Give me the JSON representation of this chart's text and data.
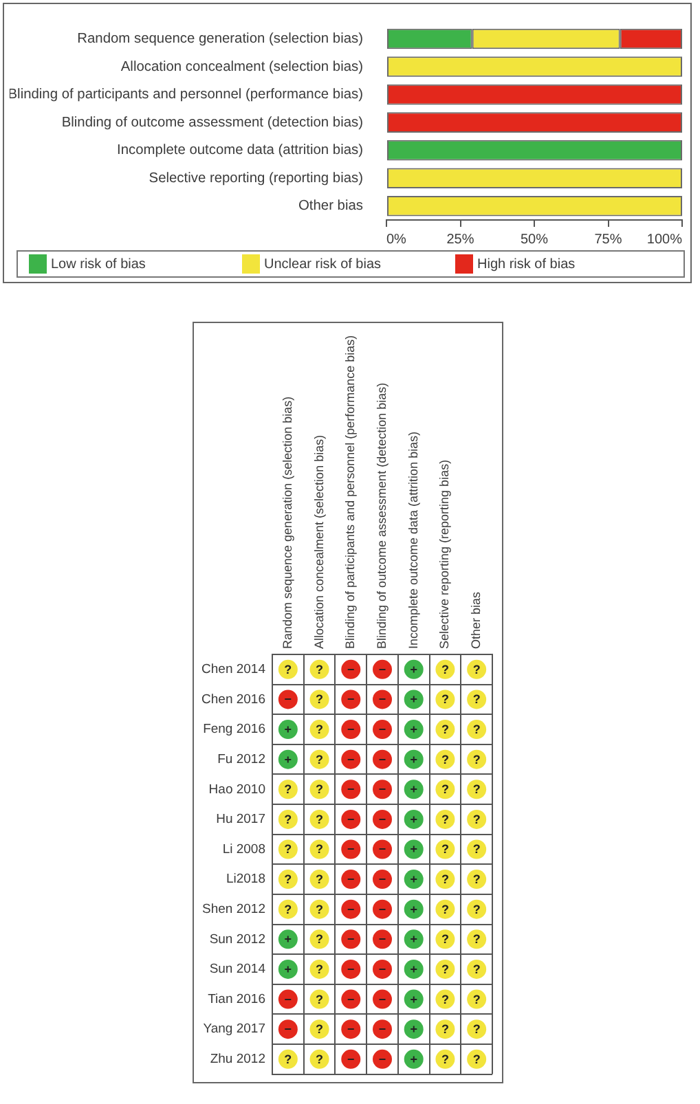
{
  "chart_data": [
    {
      "type": "bar",
      "orientation": "horizontal",
      "stacked": true,
      "categories": [
        "Random sequence generation (selection bias)",
        "Allocation concealment (selection bias)",
        "Blinding of participants and personnel (performance bias)",
        "Blinding of outcome assessment (detection bias)",
        "Incomplete outcome data (attrition bias)",
        "Selective reporting (reporting bias)",
        "Other bias"
      ],
      "series": [
        {
          "name": "Low risk of bias",
          "color": "#3db34a",
          "values": [
            29,
            0,
            0,
            0,
            100,
            0,
            0
          ]
        },
        {
          "name": "Unclear risk of bias",
          "color": "#f2e43c",
          "values": [
            50,
            100,
            0,
            0,
            0,
            100,
            100
          ]
        },
        {
          "name": "High risk of bias",
          "color": "#e3281c",
          "values": [
            21,
            0,
            100,
            100,
            0,
            0,
            0
          ]
        }
      ],
      "xlim": [
        0,
        100
      ],
      "xticks": [
        {
          "value": 0,
          "label": "0%"
        },
        {
          "value": 25,
          "label": "25%"
        },
        {
          "value": 50,
          "label": "50%"
        },
        {
          "value": 75,
          "label": "75%"
        },
        {
          "value": 100,
          "label": "100%"
        }
      ],
      "grid": false,
      "legend": "bottom"
    },
    {
      "type": "heatmap",
      "grid": true,
      "categories": [
        "Random sequence generation (selection bias)",
        "Allocation concealment (selection bias)",
        "Blinding of participants and personnel (performance bias)",
        "Blinding of outcome assessment (detection bias)",
        "Incomplete outcome data (attrition bias)",
        "Selective reporting (reporting bias)",
        "Other bias"
      ],
      "y_categories": [
        "Chen 2014",
        "Chen 2016",
        "Feng 2016",
        "Fu 2012",
        "Hao 2010",
        "Hu 2017",
        "Li 2008",
        "Li2018",
        "Shen 2012",
        "Sun 2012",
        "Sun 2014",
        "Tian 2016",
        "Yang 2017",
        "Zhu 2012"
      ],
      "cells": [
        [
          "?",
          "?",
          "−",
          "−",
          "+",
          "?",
          "?"
        ],
        [
          "−",
          "?",
          "−",
          "−",
          "+",
          "?",
          "?"
        ],
        [
          "+",
          "?",
          "−",
          "−",
          "+",
          "?",
          "?"
        ],
        [
          "+",
          "?",
          "−",
          "−",
          "+",
          "?",
          "?"
        ],
        [
          "?",
          "?",
          "−",
          "−",
          "+",
          "?",
          "?"
        ],
        [
          "?",
          "?",
          "−",
          "−",
          "+",
          "?",
          "?"
        ],
        [
          "?",
          "?",
          "−",
          "−",
          "+",
          "?",
          "?"
        ],
        [
          "?",
          "?",
          "−",
          "−",
          "+",
          "?",
          "?"
        ],
        [
          "?",
          "?",
          "−",
          "−",
          "+",
          "?",
          "?"
        ],
        [
          "+",
          "?",
          "−",
          "−",
          "+",
          "?",
          "?"
        ],
        [
          "+",
          "?",
          "−",
          "−",
          "+",
          "?",
          "?"
        ],
        [
          "−",
          "?",
          "−",
          "−",
          "+",
          "?",
          "?"
        ],
        [
          "−",
          "?",
          "−",
          "−",
          "+",
          "?",
          "?"
        ],
        [
          "?",
          "?",
          "−",
          "−",
          "+",
          "?",
          "?"
        ]
      ],
      "colors": [
        [
          "#f2e43c",
          "#f2e43c",
          "#e3281c",
          "#e3281c",
          "#3db34a",
          "#f2e43c",
          "#f2e43c"
        ],
        [
          "#e3281c",
          "#f2e43c",
          "#e3281c",
          "#e3281c",
          "#3db34a",
          "#f2e43c",
          "#f2e43c"
        ],
        [
          "#3db34a",
          "#f2e43c",
          "#e3281c",
          "#e3281c",
          "#3db34a",
          "#f2e43c",
          "#f2e43c"
        ],
        [
          "#3db34a",
          "#f2e43c",
          "#e3281c",
          "#e3281c",
          "#3db34a",
          "#f2e43c",
          "#f2e43c"
        ],
        [
          "#f2e43c",
          "#f2e43c",
          "#e3281c",
          "#e3281c",
          "#3db34a",
          "#f2e43c",
          "#f2e43c"
        ],
        [
          "#f2e43c",
          "#f2e43c",
          "#e3281c",
          "#e3281c",
          "#3db34a",
          "#f2e43c",
          "#f2e43c"
        ],
        [
          "#f2e43c",
          "#f2e43c",
          "#e3281c",
          "#e3281c",
          "#3db34a",
          "#f2e43c",
          "#f2e43c"
        ],
        [
          "#f2e43c",
          "#f2e43c",
          "#e3281c",
          "#e3281c",
          "#3db34a",
          "#f2e43c",
          "#f2e43c"
        ],
        [
          "#f2e43c",
          "#f2e43c",
          "#e3281c",
          "#e3281c",
          "#3db34a",
          "#f2e43c",
          "#f2e43c"
        ],
        [
          "#3db34a",
          "#f2e43c",
          "#e3281c",
          "#e3281c",
          "#3db34a",
          "#f2e43c",
          "#f2e43c"
        ],
        [
          "#3db34a",
          "#f2e43c",
          "#e3281c",
          "#e3281c",
          "#3db34a",
          "#f2e43c",
          "#f2e43c"
        ],
        [
          "#e3281c",
          "#f2e43c",
          "#e3281c",
          "#e3281c",
          "#3db34a",
          "#f2e43c",
          "#f2e43c"
        ],
        [
          "#e3281c",
          "#f2e43c",
          "#e3281c",
          "#e3281c",
          "#3db34a",
          "#f2e43c",
          "#f2e43c"
        ],
        [
          "#f2e43c",
          "#f2e43c",
          "#e3281c",
          "#e3281c",
          "#3db34a",
          "#f2e43c",
          "#f2e43c"
        ]
      ]
    }
  ]
}
